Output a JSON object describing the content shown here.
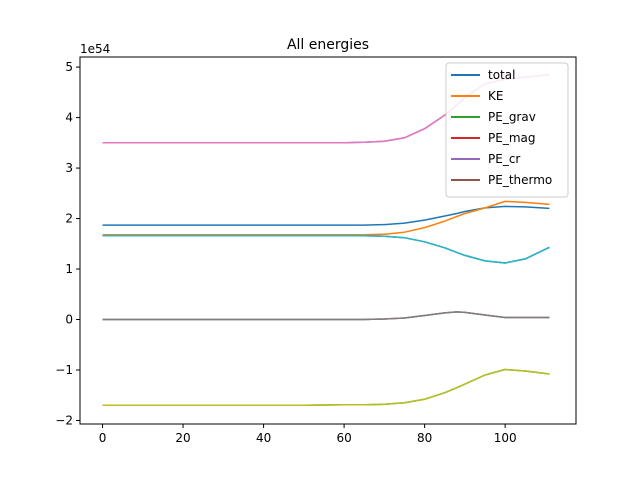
{
  "chart_data": {
    "type": "line",
    "title": "All energies",
    "xlabel": "",
    "ylabel": "",
    "offset_text": "1e54",
    "xlim": [
      -5.6,
      117.6
    ],
    "ylim": [
      -2.07,
      5.2
    ],
    "xticks": [
      0,
      20,
      40,
      60,
      80,
      100
    ],
    "xtick_labels": [
      "0",
      "20",
      "40",
      "60",
      "80",
      "100"
    ],
    "yticks": [
      -2,
      -1,
      0,
      1,
      2,
      3,
      4,
      5
    ],
    "ytick_labels": [
      "−2",
      "−1",
      "0",
      "1",
      "2",
      "3",
      "4",
      "5"
    ],
    "grid": false,
    "legend_position": "top-right",
    "x": [
      0,
      10,
      20,
      30,
      40,
      50,
      60,
      65,
      70,
      75,
      80,
      85,
      88,
      90,
      95,
      100,
      105,
      111
    ],
    "series": [
      {
        "name": "total",
        "color": "#1f77b4",
        "legend": true,
        "values": [
          1.87,
          1.87,
          1.87,
          1.87,
          1.87,
          1.87,
          1.87,
          1.87,
          1.88,
          1.91,
          1.97,
          2.05,
          2.1,
          2.14,
          2.21,
          2.24,
          2.23,
          2.2
        ]
      },
      {
        "name": "KE",
        "color": "#ff7f0e",
        "legend": true,
        "values": [
          1.68,
          1.68,
          1.68,
          1.68,
          1.68,
          1.68,
          1.68,
          1.68,
          1.69,
          1.73,
          1.82,
          1.95,
          2.04,
          2.1,
          2.21,
          2.34,
          2.32,
          2.28
        ]
      },
      {
        "name": "PE_grav",
        "color": "#2ca02c",
        "legend": true,
        "values": [
          -1.7,
          -1.7,
          -1.7,
          -1.7,
          -1.7,
          -1.7,
          -1.69,
          -1.69,
          -1.68,
          -1.65,
          -1.58,
          -1.45,
          -1.35,
          -1.28,
          -1.1,
          -0.99,
          -1.02,
          -1.08
        ]
      },
      {
        "name": "PE_mag",
        "color": "#d62728",
        "legend": true,
        "values": [
          1.66,
          1.66,
          1.66,
          1.66,
          1.66,
          1.66,
          1.66,
          1.66,
          1.65,
          1.62,
          1.54,
          1.42,
          1.33,
          1.27,
          1.16,
          1.12,
          1.2,
          1.43
        ]
      },
      {
        "name": "PE_cr",
        "color": "#9467bd",
        "legend": true,
        "values": [
          3.5,
          3.5,
          3.5,
          3.5,
          3.5,
          3.5,
          3.5,
          3.51,
          3.53,
          3.6,
          3.78,
          4.05,
          4.25,
          4.4,
          4.67,
          4.76,
          4.8,
          4.85
        ]
      },
      {
        "name": "PE_thermo",
        "color": "#8c564b",
        "legend": true,
        "values": [
          0.0,
          0.0,
          0.0,
          0.0,
          0.0,
          0.0,
          0.0,
          0.0,
          0.01,
          0.03,
          0.08,
          0.13,
          0.15,
          0.14,
          0.09,
          0.04,
          0.04,
          0.04
        ]
      },
      {
        "name": "",
        "color": "#e377c2",
        "legend": false,
        "values": [
          3.5,
          3.5,
          3.5,
          3.5,
          3.5,
          3.5,
          3.5,
          3.51,
          3.53,
          3.6,
          3.78,
          4.05,
          4.25,
          4.4,
          4.67,
          4.76,
          4.8,
          4.85
        ]
      },
      {
        "name": "",
        "color": "#7f7f7f",
        "legend": false,
        "values": [
          0.0,
          0.0,
          0.0,
          0.0,
          0.0,
          0.0,
          0.0,
          0.0,
          0.01,
          0.03,
          0.08,
          0.13,
          0.15,
          0.14,
          0.09,
          0.04,
          0.04,
          0.04
        ]
      },
      {
        "name": "",
        "color": "#bcbd22",
        "legend": false,
        "values": [
          -1.7,
          -1.7,
          -1.7,
          -1.7,
          -1.7,
          -1.7,
          -1.69,
          -1.69,
          -1.68,
          -1.65,
          -1.58,
          -1.45,
          -1.35,
          -1.28,
          -1.1,
          -0.99,
          -1.02,
          -1.08
        ]
      },
      {
        "name": "",
        "color": "#17becf",
        "legend": false,
        "values": [
          1.66,
          1.66,
          1.66,
          1.66,
          1.66,
          1.66,
          1.66,
          1.66,
          1.65,
          1.62,
          1.54,
          1.42,
          1.33,
          1.27,
          1.16,
          1.12,
          1.2,
          1.43
        ]
      }
    ]
  }
}
